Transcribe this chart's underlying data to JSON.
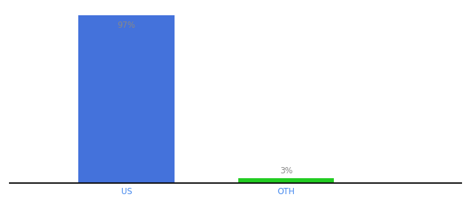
{
  "categories": [
    "US",
    "OTH"
  ],
  "values": [
    97,
    3
  ],
  "bar_colors": [
    "#4472db",
    "#22cc22"
  ],
  "label_texts": [
    "97%",
    "3%"
  ],
  "label_color": "#888888",
  "xlabel": "",
  "ylabel": "",
  "ylim": [
    0,
    100
  ],
  "background_color": "#ffffff",
  "axis_line_color": "#111111",
  "tick_label_color": "#4488ee",
  "bar_width": 0.18,
  "label_fontsize": 8.5,
  "tick_fontsize": 8.5
}
